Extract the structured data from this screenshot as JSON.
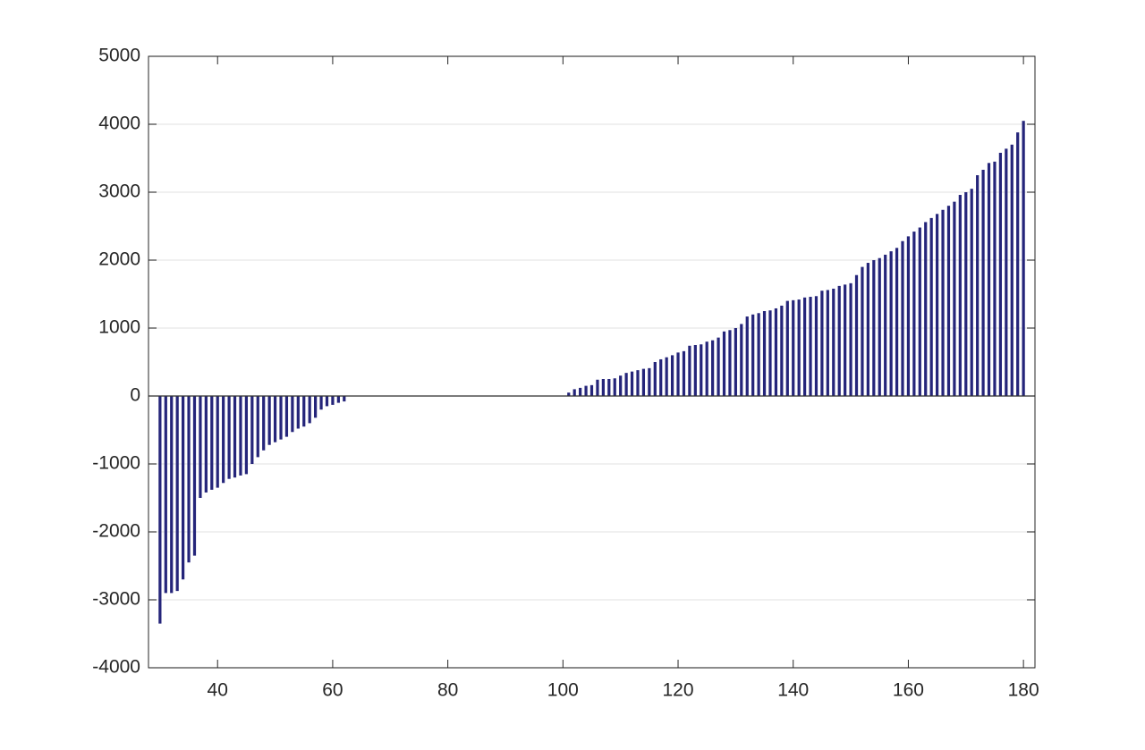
{
  "chart_data": {
    "type": "bar",
    "x": [
      30,
      31,
      32,
      33,
      34,
      35,
      36,
      37,
      38,
      39,
      40,
      41,
      42,
      43,
      44,
      45,
      46,
      47,
      48,
      49,
      50,
      51,
      52,
      53,
      54,
      55,
      56,
      57,
      58,
      59,
      60,
      61,
      62,
      101,
      102,
      103,
      104,
      105,
      106,
      107,
      108,
      109,
      110,
      111,
      112,
      113,
      114,
      115,
      116,
      117,
      118,
      119,
      120,
      121,
      122,
      123,
      124,
      125,
      126,
      127,
      128,
      129,
      130,
      131,
      132,
      133,
      134,
      135,
      136,
      137,
      138,
      139,
      140,
      141,
      142,
      143,
      144,
      145,
      146,
      147,
      148,
      149,
      150,
      151,
      152,
      153,
      154,
      155,
      156,
      157,
      158,
      159,
      160,
      161,
      162,
      163,
      164,
      165,
      166,
      167,
      168,
      169,
      170,
      171,
      172,
      173,
      174,
      175,
      176,
      177,
      178,
      179,
      180
    ],
    "values": [
      -3350,
      -2900,
      -2900,
      -2870,
      -2700,
      -2450,
      -2350,
      -1500,
      -1420,
      -1380,
      -1350,
      -1280,
      -1220,
      -1200,
      -1170,
      -1150,
      -1000,
      -900,
      -800,
      -720,
      -680,
      -640,
      -600,
      -530,
      -480,
      -450,
      -400,
      -320,
      -200,
      -150,
      -130,
      -100,
      -80,
      50,
      100,
      120,
      150,
      160,
      240,
      250,
      250,
      260,
      300,
      340,
      360,
      380,
      400,
      410,
      500,
      540,
      570,
      600,
      640,
      660,
      740,
      750,
      760,
      800,
      820,
      860,
      950,
      970,
      1000,
      1060,
      1170,
      1200,
      1220,
      1250,
      1260,
      1290,
      1330,
      1400,
      1410,
      1420,
      1450,
      1460,
      1470,
      1550,
      1560,
      1580,
      1620,
      1640,
      1660,
      1780,
      1900,
      1960,
      2000,
      2030,
      2080,
      2130,
      2180,
      2280,
      2350,
      2420,
      2480,
      2560,
      2620,
      2680,
      2740,
      2800,
      2860,
      2960,
      3000,
      3050,
      3250,
      3330,
      3430,
      3450,
      3580,
      3640,
      3700,
      3880,
      4050
    ],
    "color": "#25257a",
    "xlim": [
      28,
      182
    ],
    "xticks": [
      40,
      60,
      80,
      100,
      120,
      140,
      160,
      180
    ],
    "ylim": [
      -4000,
      5000
    ],
    "yticks": [
      -4000,
      -3000,
      -2000,
      -1000,
      0,
      1000,
      2000,
      3000,
      4000,
      5000
    ],
    "grid": true
  }
}
